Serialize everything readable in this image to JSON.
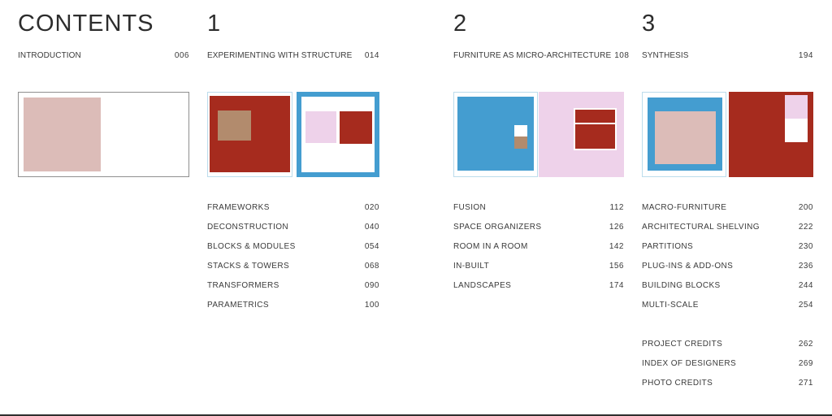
{
  "header": {
    "title": "CONTENTS"
  },
  "intro": {
    "label": "INTRODUCTION",
    "page": "006"
  },
  "chapters": [
    {
      "number": "1",
      "title": "EXPERIMENTING WITH STRUCTURE",
      "page": "014",
      "sections": [
        {
          "label": "FRAMEWORKS",
          "page": "020"
        },
        {
          "label": "DECONSTRUCTION",
          "page": "040"
        },
        {
          "label": "BLOCKS & MODULES",
          "page": "054"
        },
        {
          "label": "STACKS & TOWERS",
          "page": "068"
        },
        {
          "label": "TRANSFORMERS",
          "page": "090"
        },
        {
          "label": "PARAMETRICS",
          "page": "100"
        }
      ]
    },
    {
      "number": "2",
      "title": "FURNITURE AS MICRO-ARCHITECTURE",
      "page": "108",
      "sections": [
        {
          "label": "FUSION",
          "page": "112"
        },
        {
          "label": "SPACE ORGANIZERS",
          "page": "126"
        },
        {
          "label": "ROOM IN A ROOM",
          "page": "142"
        },
        {
          "label": "IN-BUILT",
          "page": "156"
        },
        {
          "label": "LANDSCAPES",
          "page": "174"
        }
      ]
    },
    {
      "number": "3",
      "title": "SYNTHESIS",
      "page": "194",
      "sections": [
        {
          "label": "MACRO-FURNITURE",
          "page": "200"
        },
        {
          "label": "ARCHITECTURAL SHELVING",
          "page": "222"
        },
        {
          "label": "PARTITIONS",
          "page": "230"
        },
        {
          "label": "PLUG-INS & ADD-ONS",
          "page": "236"
        },
        {
          "label": "BUILDING BLOCKS",
          "page": "244"
        },
        {
          "label": "MULTI-SCALE",
          "page": "254"
        }
      ]
    }
  ],
  "appendix": [
    {
      "label": "PROJECT CREDITS",
      "page": "262"
    },
    {
      "label": "INDEX OF DESIGNERS",
      "page": "269"
    },
    {
      "label": "PHOTO CREDITS",
      "page": "271"
    }
  ],
  "colors": {
    "text": "#3a3a3a",
    "heading": "#2d2d2d",
    "brick_red": "#a62b1e",
    "sky_blue": "#449dd0",
    "pale_blue_border": "#bcdcec",
    "dusty_rose": "#dcbcb8",
    "pale_pink": "#eed2ea",
    "tan": "#b28b6d",
    "frame_gray": "#8f8f8f",
    "bottom_edge": "#2f2f2f"
  }
}
